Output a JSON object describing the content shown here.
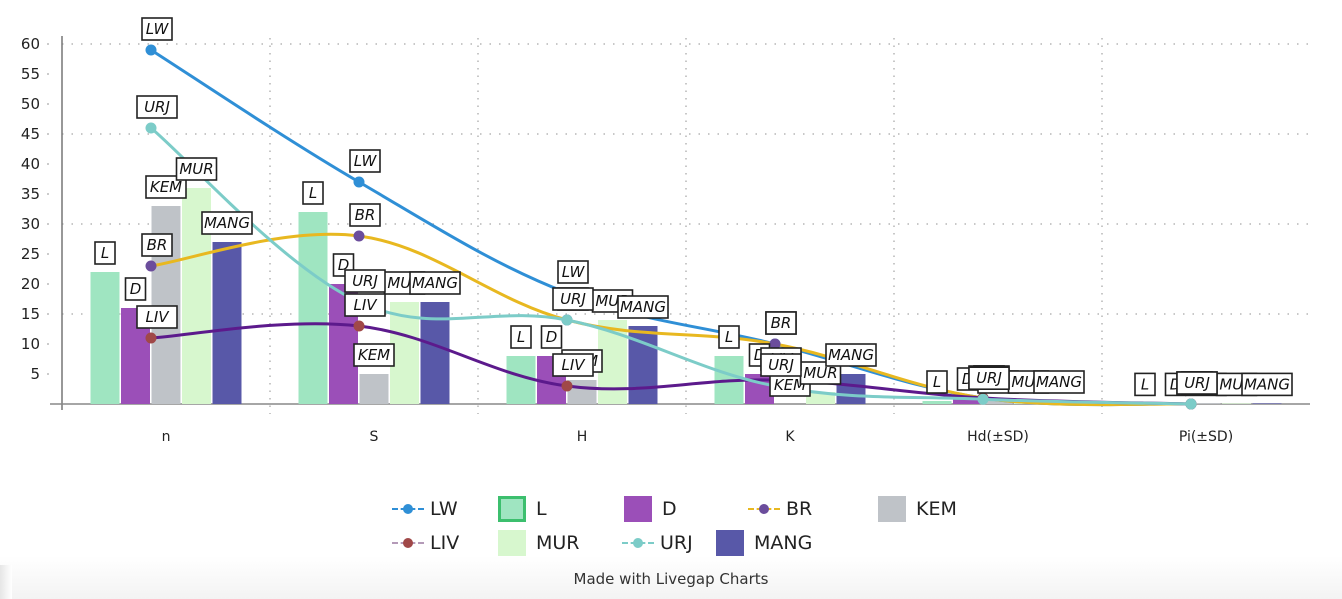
{
  "chart_data": {
    "type": "bar",
    "title": "",
    "xlabel": "",
    "ylabel": "",
    "categories": [
      "n",
      "S",
      "H",
      "K",
      "Hd(±SD)",
      "Pi(±SD)"
    ],
    "ylim": [
      0,
      60
    ],
    "yticks": [
      5,
      10,
      15,
      20,
      25,
      30,
      35,
      40,
      45,
      50,
      55,
      60
    ],
    "grid": true,
    "legend_position": "bottom",
    "bar_series": [
      {
        "name": "L",
        "color": "#9fe5c1",
        "border": "#3cbf6e",
        "values": [
          22,
          32,
          8,
          8,
          0.5,
          0.1
        ]
      },
      {
        "name": "D",
        "color": "#9b4fb8",
        "values": [
          16,
          20,
          8,
          5,
          1,
          0.1
        ]
      },
      {
        "name": "KEM",
        "color": "#bfc3c8",
        "values": [
          33,
          5,
          4,
          0,
          0.5,
          0.1
        ]
      },
      {
        "name": "MUR",
        "color": "#d7f7ce",
        "values": [
          36,
          17,
          14,
          2,
          0.5,
          0.1
        ]
      },
      {
        "name": "MANG",
        "color": "#5858a8",
        "values": [
          27,
          17,
          13,
          5,
          0.5,
          0.1
        ]
      }
    ],
    "line_series": [
      {
        "name": "LW",
        "color": "#2f8fd6",
        "values": [
          59,
          37,
          18.5,
          10,
          1,
          0
        ]
      },
      {
        "name": "BR",
        "color": "#e8b820",
        "marker": "#6b4d9c",
        "values": [
          23,
          28,
          14,
          10,
          1,
          0
        ]
      },
      {
        "name": "LIV",
        "color": "#5c1a8c",
        "marker": "#a04848",
        "values": [
          11,
          13,
          3,
          4,
          1,
          0
        ]
      },
      {
        "name": "URJ",
        "color": "#7cccc8",
        "values": [
          46,
          17,
          14,
          3,
          0.8,
          0
        ]
      }
    ],
    "data_labels": [
      [
        "LW",
        "L",
        "D",
        "BR",
        "KEM",
        "LIV",
        "MUR",
        "URJ",
        "MANG"
      ]
    ]
  },
  "legend": {
    "row1": [
      {
        "name": "LW",
        "kind": "line",
        "color": "#2f8fd6",
        "marker": "#2f8fd6"
      },
      {
        "name": "L",
        "kind": "box",
        "color": "#9fe5c1",
        "border": "#3cbf6e"
      },
      {
        "name": "D",
        "kind": "box",
        "color": "#9b4fb8"
      },
      {
        "name": "BR",
        "kind": "line",
        "color": "#e8b820",
        "marker": "#6b4d9c"
      },
      {
        "name": "KEM",
        "kind": "box",
        "color": "#bfc3c8"
      }
    ],
    "row2": [
      {
        "name": "LIV",
        "kind": "line",
        "color": "#b49ab8",
        "marker": "#a04848"
      },
      {
        "name": "MUR",
        "kind": "box",
        "color": "#d7f7ce"
      },
      {
        "name": "URJ",
        "kind": "line",
        "color": "#7cccc8",
        "marker": "#7cccc8"
      },
      {
        "name": "MANG",
        "kind": "box",
        "color": "#5858a8"
      }
    ]
  },
  "footer": {
    "text": "Made with Livegap Charts"
  }
}
